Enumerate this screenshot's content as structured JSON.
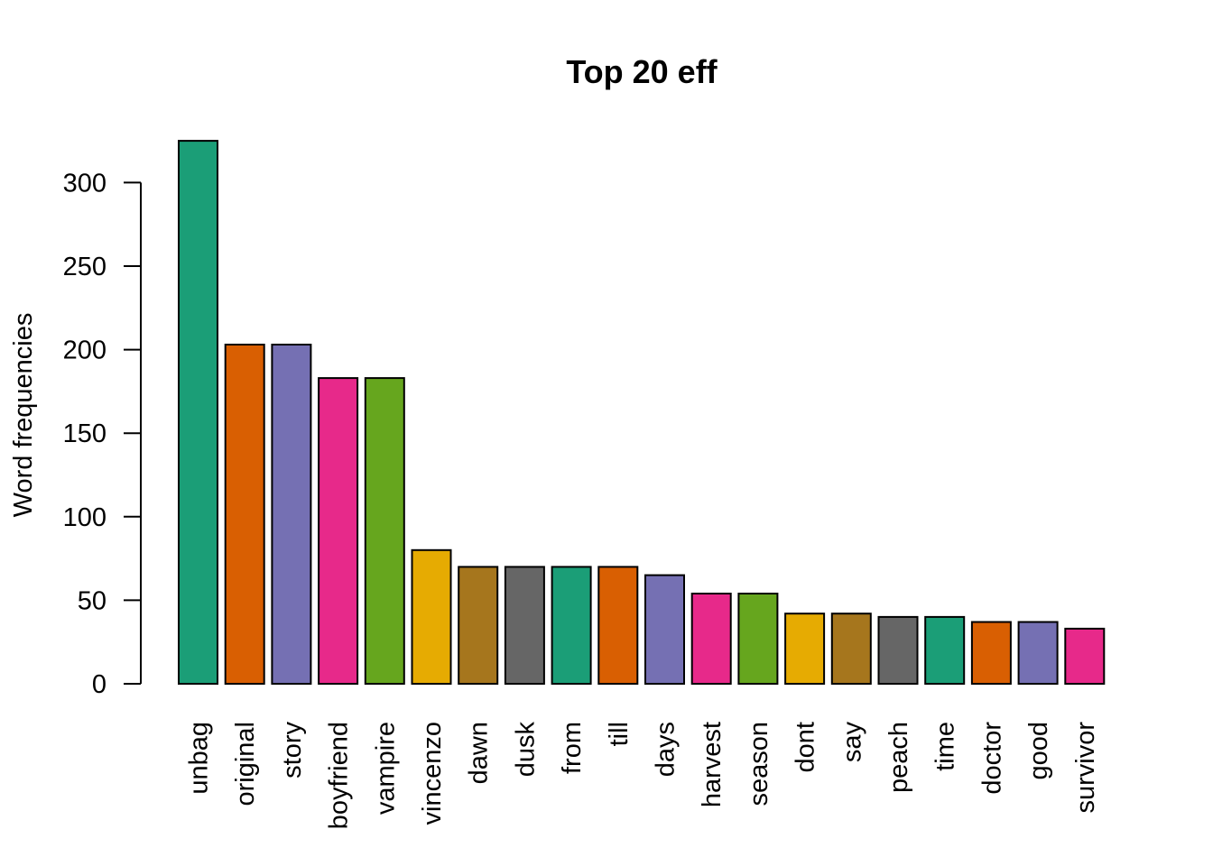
{
  "chart_data": {
    "type": "bar",
    "title": "Top 20 eff",
    "xlabel": "",
    "ylabel": "Word frequencies",
    "ylim": [
      0,
      300
    ],
    "yticks": [
      0,
      50,
      100,
      150,
      200,
      250,
      300
    ],
    "grid": false,
    "categories": [
      "unbag",
      "original",
      "story",
      "boyfriend",
      "vampire",
      "vincenzo",
      "dawn",
      "dusk",
      "from",
      "till",
      "days",
      "harvest",
      "season",
      "dont",
      "say",
      "peach",
      "time",
      "doctor",
      "good",
      "survivor"
    ],
    "values": [
      325,
      203,
      203,
      183,
      183,
      80,
      70,
      70,
      70,
      70,
      65,
      54,
      54,
      42,
      42,
      40,
      40,
      37,
      37,
      33
    ],
    "colors": [
      "#1B9E77",
      "#D95F02",
      "#7570B3",
      "#E7298A",
      "#66A61E",
      "#E6AB02",
      "#A6761D",
      "#666666",
      "#1B9E77",
      "#D95F02",
      "#7570B3",
      "#E7298A",
      "#66A61E",
      "#E6AB02",
      "#A6761D",
      "#666666",
      "#1B9E77",
      "#D95F02",
      "#7570B3",
      "#E7298A"
    ]
  }
}
